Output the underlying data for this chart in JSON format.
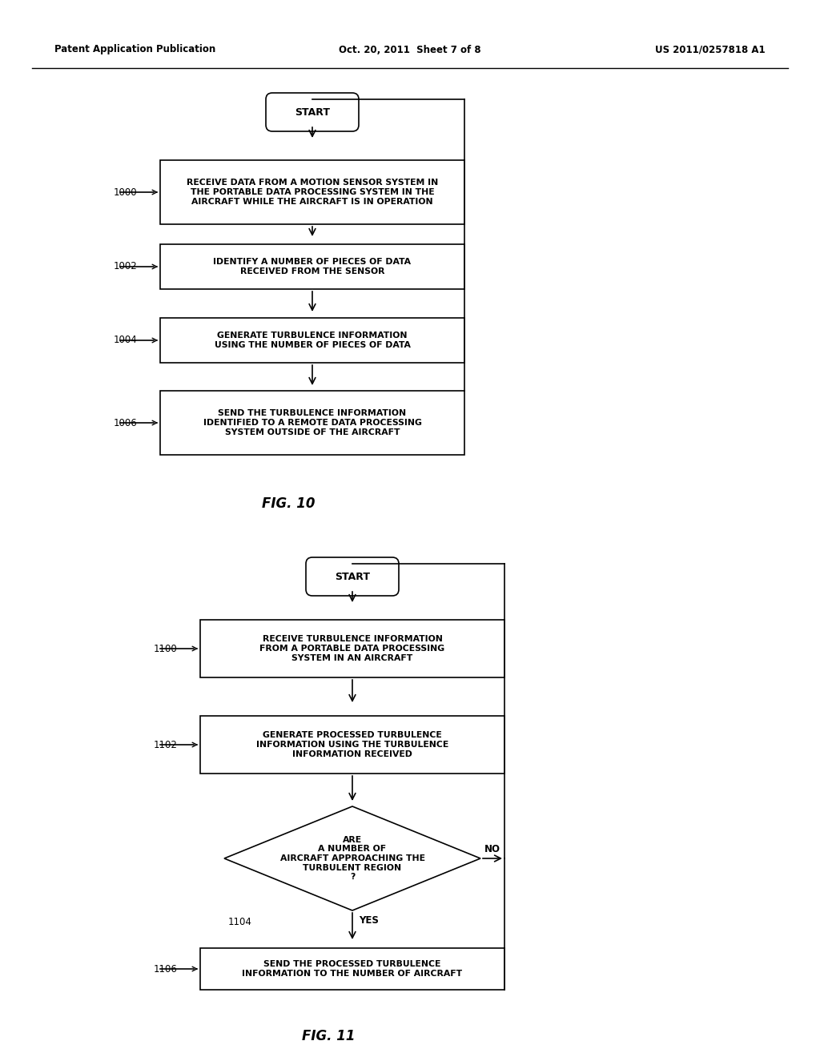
{
  "bg_color": "#ffffff",
  "header_left": "Patent Application Publication",
  "header_mid": "Oct. 20, 2011  Sheet 7 of 8",
  "header_right": "US 2011/0257818 A1",
  "fig10_caption": "FIG. 10",
  "fig11_caption": "FIG. 11"
}
